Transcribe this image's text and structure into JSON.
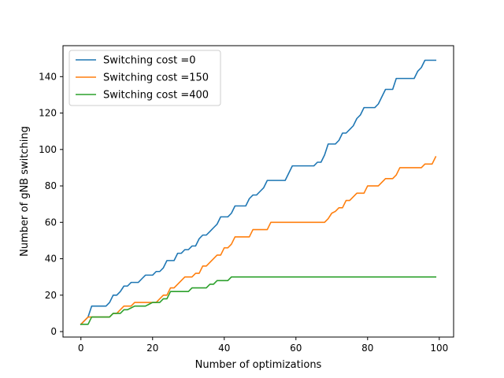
{
  "chart_data": {
    "type": "line",
    "title": "",
    "xlabel": "Number of optimizations",
    "ylabel": "Number of gNB switching",
    "xlim": [
      -5,
      104
    ],
    "ylim": [
      -3,
      157
    ],
    "xticks": [
      0,
      20,
      40,
      60,
      80,
      100
    ],
    "yticks": [
      0,
      20,
      40,
      60,
      80,
      100,
      120,
      140
    ],
    "grid": false,
    "legend": "top-left",
    "series": [
      {
        "name": "Switching cost =0",
        "color": "#1f77b4",
        "x": [
          0,
          1,
          2,
          3,
          4,
          5,
          6,
          7,
          8,
          9,
          10,
          11,
          12,
          13,
          14,
          15,
          16,
          17,
          18,
          19,
          20,
          21,
          22,
          23,
          24,
          25,
          26,
          27,
          28,
          29,
          30,
          31,
          32,
          33,
          34,
          35,
          36,
          37,
          38,
          39,
          40,
          41,
          42,
          43,
          44,
          45,
          46,
          47,
          48,
          49,
          50,
          51,
          52,
          53,
          54,
          55,
          56,
          57,
          58,
          59,
          60,
          61,
          62,
          63,
          64,
          65,
          66,
          67,
          68,
          69,
          70,
          71,
          72,
          73,
          74,
          75,
          76,
          77,
          78,
          79,
          80,
          81,
          82,
          83,
          84,
          85,
          86,
          87,
          88,
          89,
          90,
          91,
          92,
          93,
          94,
          95,
          96,
          97,
          98,
          99
        ],
        "y": [
          4,
          6,
          8,
          14,
          14,
          14,
          14,
          14,
          16,
          20,
          20,
          22,
          25,
          25,
          27,
          27,
          27,
          29,
          31,
          31,
          31,
          33,
          33,
          35,
          39,
          39,
          39,
          43,
          43,
          45,
          45,
          47,
          47,
          51,
          53,
          53,
          55,
          57,
          59,
          63,
          63,
          63,
          65,
          69,
          69,
          69,
          69,
          73,
          75,
          75,
          77,
          79,
          83,
          83,
          83,
          83,
          83,
          83,
          87,
          91,
          91,
          91,
          91,
          91,
          91,
          91,
          93,
          93,
          97,
          103,
          103,
          103,
          105,
          109,
          109,
          111,
          113,
          117,
          119,
          123,
          123,
          123,
          123,
          125,
          129,
          133,
          133,
          133,
          139,
          139,
          139,
          139,
          139,
          139,
          143,
          145,
          149,
          149,
          149,
          149
        ]
      },
      {
        "name": "Switching cost =150",
        "color": "#ff7f0e",
        "x": [
          0,
          1,
          2,
          3,
          4,
          5,
          6,
          7,
          8,
          9,
          10,
          11,
          12,
          13,
          14,
          15,
          16,
          17,
          18,
          19,
          20,
          21,
          22,
          23,
          24,
          25,
          26,
          27,
          28,
          29,
          30,
          31,
          32,
          33,
          34,
          35,
          36,
          37,
          38,
          39,
          40,
          41,
          42,
          43,
          44,
          45,
          46,
          47,
          48,
          49,
          50,
          51,
          52,
          53,
          54,
          55,
          56,
          57,
          58,
          59,
          60,
          61,
          62,
          63,
          64,
          65,
          66,
          67,
          68,
          69,
          70,
          71,
          72,
          73,
          74,
          75,
          76,
          77,
          78,
          79,
          80,
          81,
          82,
          83,
          84,
          85,
          86,
          87,
          88,
          89,
          90,
          91,
          92,
          93,
          94,
          95,
          96,
          97,
          98,
          99
        ],
        "y": [
          4,
          6,
          8,
          8,
          8,
          8,
          8,
          8,
          8,
          10,
          10,
          12,
          14,
          14,
          14,
          16,
          16,
          16,
          16,
          16,
          16,
          16,
          18,
          20,
          20,
          24,
          24,
          26,
          28,
          30,
          30,
          30,
          32,
          32,
          36,
          36,
          38,
          40,
          42,
          42,
          46,
          46,
          48,
          52,
          52,
          52,
          52,
          52,
          56,
          56,
          56,
          56,
          56,
          60,
          60,
          60,
          60,
          60,
          60,
          60,
          60,
          60,
          60,
          60,
          60,
          60,
          60,
          60,
          60,
          62,
          65,
          66,
          68,
          68,
          72,
          72,
          74,
          76,
          76,
          76,
          80,
          80,
          80,
          80,
          82,
          84,
          84,
          84,
          86,
          90,
          90,
          90,
          90,
          90,
          90,
          90,
          92,
          92,
          92,
          96
        ]
      },
      {
        "name": "Switching cost =400",
        "color": "#2ca02c",
        "x": [
          0,
          1,
          2,
          3,
          4,
          5,
          6,
          7,
          8,
          9,
          10,
          11,
          12,
          13,
          14,
          15,
          16,
          17,
          18,
          19,
          20,
          21,
          22,
          23,
          24,
          25,
          26,
          27,
          28,
          29,
          30,
          31,
          32,
          33,
          34,
          35,
          36,
          37,
          38,
          39,
          40,
          41,
          42,
          43,
          44,
          45,
          46,
          47,
          48,
          49,
          50,
          51,
          52,
          53,
          54,
          55,
          56,
          57,
          58,
          59,
          60,
          61,
          62,
          63,
          64,
          65,
          66,
          67,
          68,
          69,
          70,
          71,
          72,
          73,
          74,
          75,
          76,
          77,
          78,
          79,
          80,
          81,
          82,
          83,
          84,
          85,
          86,
          87,
          88,
          89,
          90,
          91,
          92,
          93,
          94,
          95,
          96,
          97,
          98,
          99
        ],
        "y": [
          4,
          4,
          4,
          8,
          8,
          8,
          8,
          8,
          8,
          10,
          10,
          10,
          12,
          12,
          13,
          14,
          14,
          14,
          14,
          15,
          16,
          16,
          16,
          18,
          18,
          22,
          22,
          22,
          22,
          22,
          22,
          24,
          24,
          24,
          24,
          24,
          26,
          26,
          28,
          28,
          28,
          28,
          30,
          30,
          30,
          30,
          30,
          30,
          30,
          30,
          30,
          30,
          30,
          30,
          30,
          30,
          30,
          30,
          30,
          30,
          30,
          30,
          30,
          30,
          30,
          30,
          30,
          30,
          30,
          30,
          30,
          30,
          30,
          30,
          30,
          30,
          30,
          30,
          30,
          30,
          30,
          30,
          30,
          30,
          30,
          30,
          30,
          30,
          30,
          30,
          30,
          30,
          30,
          30,
          30,
          30,
          30,
          30,
          30,
          30
        ]
      }
    ]
  }
}
